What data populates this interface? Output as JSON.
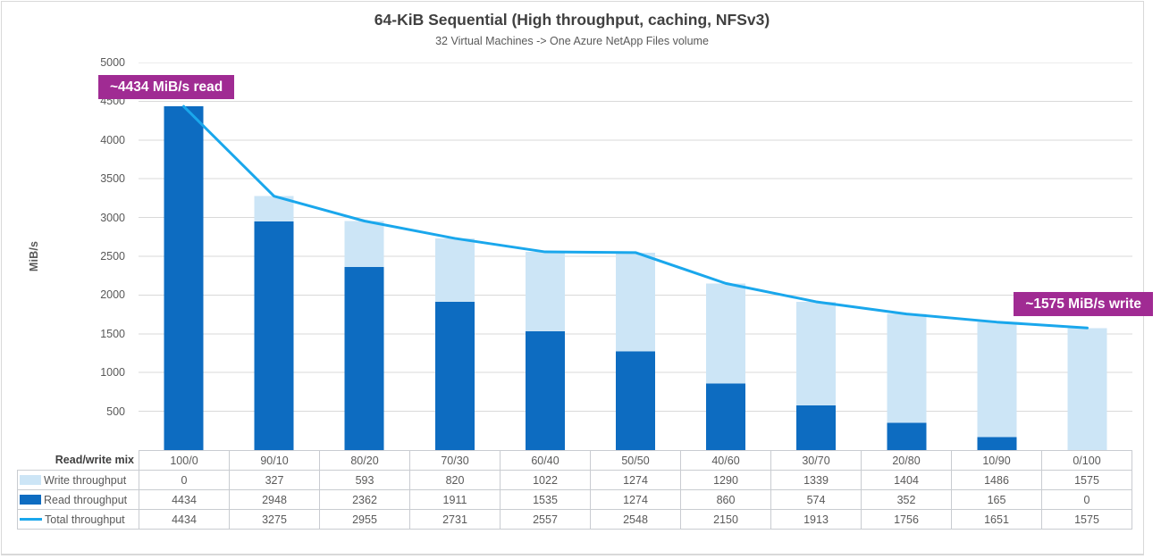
{
  "annotations": {
    "read_label": "~4434 MiB/s read",
    "write_label": "~1575 MiB/s write"
  },
  "table": {
    "header_label": "Read/write mix"
  },
  "colors": {
    "annotation_bg": "#A02B93",
    "gridline": "#D9D9D9",
    "frame_border": "#D9D9D9",
    "table_border": "#C9CCD1",
    "title_text": "#404040",
    "axis_text": "#595959",
    "write_bar": "#CCE5F6",
    "read_bar": "#0D6CC1",
    "total_line": "#1AA7EC"
  },
  "chart_data": {
    "type": "bar",
    "subtype": "stacked-columns-with-line-overlay",
    "title": "64-KiB Sequential (High throughput, caching, NFSv3)",
    "subtitle": "32 Virtual Machines -> One Azure NetApp Files volume",
    "xlabel": "Read/write mix",
    "ylabel": "MiB/s",
    "ylim": [
      0,
      5000
    ],
    "y_ticks": [
      500,
      1000,
      1500,
      2000,
      2500,
      3000,
      3500,
      4000,
      4500,
      5000
    ],
    "grid": true,
    "legend_position": "left column of data table below chart",
    "categories": [
      "100/0",
      "90/10",
      "80/20",
      "70/30",
      "60/40",
      "50/50",
      "40/60",
      "30/70",
      "20/80",
      "10/90",
      "0/100"
    ],
    "series": [
      {
        "name": "Write throughput",
        "role": "write",
        "kind": "bar",
        "stack": "top",
        "color": "#CCE5F6",
        "values": [
          0,
          327,
          593,
          820,
          1022,
          1274,
          1290,
          1339,
          1404,
          1486,
          1575
        ]
      },
      {
        "name": "Read throughput",
        "role": "read",
        "kind": "bar",
        "stack": "bottom",
        "color": "#0D6CC1",
        "values": [
          4434,
          2948,
          2362,
          1911,
          1535,
          1274,
          860,
          574,
          352,
          165,
          0
        ]
      },
      {
        "name": "Total throughput",
        "role": "total",
        "kind": "line",
        "color": "#1AA7EC",
        "values": [
          4434,
          3275,
          2955,
          2731,
          2557,
          2548,
          2150,
          1913,
          1756,
          1651,
          1575
        ]
      }
    ]
  }
}
